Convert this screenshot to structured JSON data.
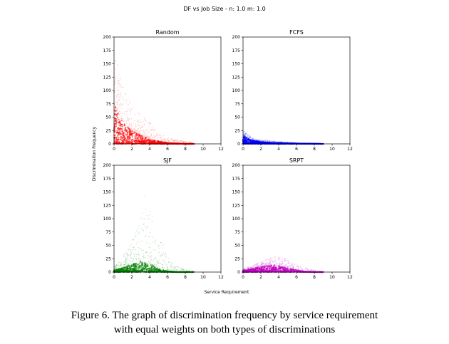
{
  "figure": {
    "suptitle": "DF vs Job Size - n: 1.0 m: 1.0",
    "xlabel": "Service Requirement",
    "ylabel": "Discrimination Frequency"
  },
  "caption": {
    "line1": "Figure 6. The graph of discrimination frequency by service requirement",
    "line2": "with equal weights on both types of discriminations"
  },
  "chart_data": [
    {
      "type": "scatter",
      "title": "Random",
      "color": "#ff0000",
      "xlim": [
        0,
        12
      ],
      "ylim": [
        0,
        200
      ],
      "xticks": [
        0,
        2,
        4,
        6,
        8,
        10,
        12
      ],
      "yticks": [
        0,
        25,
        50,
        75,
        100,
        125,
        150,
        175,
        200
      ],
      "dense_band": [
        [
          0,
          75
        ],
        [
          1,
          40
        ],
        [
          2,
          25
        ],
        [
          3,
          18
        ],
        [
          4,
          8
        ],
        [
          5,
          5
        ],
        [
          6,
          2
        ],
        [
          8,
          0
        ]
      ],
      "sparse_envelope": [
        [
          0,
          195
        ],
        [
          0.5,
          140
        ],
        [
          1,
          110
        ],
        [
          2,
          75
        ],
        [
          3,
          55
        ],
        [
          4,
          40
        ],
        [
          5,
          20
        ],
        [
          6,
          12
        ],
        [
          7,
          8
        ],
        [
          8,
          5
        ],
        [
          9,
          2
        ]
      ]
    },
    {
      "type": "scatter",
      "title": "FCFS",
      "color": "#0000ff",
      "xlim": [
        0,
        12
      ],
      "ylim": [
        0,
        200
      ],
      "xticks": [
        0,
        2,
        4,
        6,
        8,
        10,
        12
      ],
      "yticks": [
        0,
        25,
        50,
        75,
        100,
        125,
        150,
        175,
        200
      ],
      "dense_band": [
        [
          0,
          15
        ],
        [
          1,
          7
        ],
        [
          2,
          4
        ],
        [
          3,
          3
        ],
        [
          4,
          2
        ],
        [
          6,
          1
        ],
        [
          9,
          0
        ]
      ],
      "sparse_envelope": [
        [
          0,
          25
        ],
        [
          1,
          12
        ],
        [
          2,
          8
        ],
        [
          4,
          4
        ],
        [
          6,
          2
        ],
        [
          8,
          1
        ],
        [
          9,
          0
        ]
      ]
    },
    {
      "type": "scatter",
      "title": "SJF",
      "color": "#008000",
      "xlim": [
        0,
        12
      ],
      "ylim": [
        0,
        200
      ],
      "xticks": [
        0,
        2,
        4,
        6,
        8,
        10,
        12
      ],
      "yticks": [
        0,
        25,
        50,
        75,
        100,
        125,
        150,
        175,
        200
      ],
      "dense_band": [
        [
          0,
          3
        ],
        [
          1,
          8
        ],
        [
          2,
          14
        ],
        [
          3,
          20
        ],
        [
          4,
          16
        ],
        [
          5,
          6
        ],
        [
          6,
          2
        ],
        [
          7,
          0
        ]
      ],
      "sparse_envelope": [
        [
          0,
          10
        ],
        [
          1,
          30
        ],
        [
          2,
          55
        ],
        [
          3,
          110
        ],
        [
          3.5,
          150
        ],
        [
          4,
          120
        ],
        [
          5,
          75
        ],
        [
          6,
          30
        ],
        [
          7,
          12
        ],
        [
          8,
          5
        ],
        [
          9,
          1
        ]
      ]
    },
    {
      "type": "scatter",
      "title": "SRPT",
      "color": "#bf00bf",
      "xlim": [
        0,
        12
      ],
      "ylim": [
        0,
        200
      ],
      "xticks": [
        0,
        2,
        4,
        6,
        8,
        10,
        12
      ],
      "yticks": [
        0,
        25,
        50,
        75,
        100,
        125,
        150,
        175,
        200
      ],
      "dense_band": [
        [
          0,
          3
        ],
        [
          1,
          6
        ],
        [
          2,
          10
        ],
        [
          3,
          13
        ],
        [
          4,
          12
        ],
        [
          5,
          8
        ],
        [
          6,
          4
        ],
        [
          7,
          1
        ],
        [
          8,
          0
        ]
      ],
      "sparse_envelope": [
        [
          0,
          6
        ],
        [
          1,
          12
        ],
        [
          2,
          20
        ],
        [
          3,
          28
        ],
        [
          4,
          30
        ],
        [
          5,
          24
        ],
        [
          6,
          14
        ],
        [
          7,
          8
        ],
        [
          8,
          4
        ],
        [
          9,
          1
        ]
      ]
    }
  ]
}
